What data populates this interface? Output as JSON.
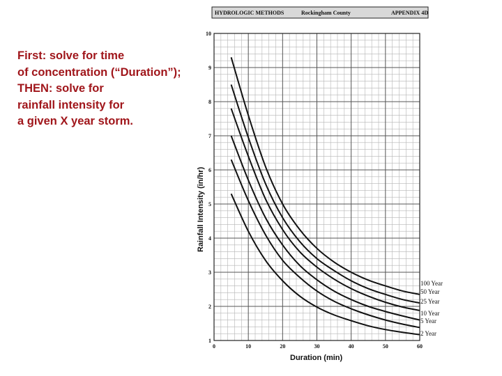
{
  "slide_note": {
    "lines": [
      "First: solve for time",
      "of concentration (“Duration”);",
      "THEN: solve for",
      "rainfall intensity for",
      "a given X year storm."
    ]
  },
  "figure_header": {
    "left": "HYDROLOGIC METHODS",
    "center": "Rockingham County",
    "right": "APPENDIX 4D"
  },
  "colors": {
    "note_text": "#a0161b",
    "curves": "#111111",
    "minor_grid": "#b5b5b5",
    "major_grid": "#555555"
  },
  "chart_data": {
    "type": "line",
    "xlabel": "Duration (min)",
    "ylabel": "Rainfall Intensity (in/hr)",
    "xlim": [
      0,
      60
    ],
    "ylim": [
      1,
      10
    ],
    "x_ticks": [
      "0",
      "10",
      "20",
      "30",
      "40",
      "50",
      "60"
    ],
    "y_ticks": [
      "1",
      "2",
      "3",
      "4",
      "5",
      "6",
      "7",
      "8",
      "9",
      "10"
    ],
    "grid": true,
    "x": [
      5,
      10,
      15,
      20,
      25,
      30,
      35,
      40,
      45,
      50,
      55,
      60
    ],
    "series": [
      {
        "name": "100 Year",
        "values": [
          9.3,
          7.6,
          6.1,
          5.0,
          4.25,
          3.7,
          3.3,
          3.0,
          2.77,
          2.6,
          2.45,
          2.35
        ]
      },
      {
        "name": "50 Year",
        "values": [
          8.5,
          6.95,
          5.6,
          4.6,
          3.9,
          3.4,
          3.05,
          2.75,
          2.52,
          2.35,
          2.2,
          2.1
        ]
      },
      {
        "name": "25 Year",
        "values": [
          7.8,
          6.4,
          5.15,
          4.25,
          3.6,
          3.15,
          2.8,
          2.52,
          2.3,
          2.12,
          1.98,
          1.88
        ]
      },
      {
        "name": "10 Year",
        "values": [
          7.0,
          5.7,
          4.6,
          3.8,
          3.2,
          2.78,
          2.45,
          2.2,
          2.0,
          1.85,
          1.72,
          1.6
        ]
      },
      {
        "name": "5 Year",
        "values": [
          6.3,
          5.1,
          4.1,
          3.35,
          2.85,
          2.45,
          2.15,
          1.93,
          1.75,
          1.6,
          1.48,
          1.38
        ]
      },
      {
        "name": "2 Year",
        "values": [
          5.3,
          4.2,
          3.35,
          2.75,
          2.3,
          1.98,
          1.75,
          1.58,
          1.43,
          1.32,
          1.24,
          1.17
        ]
      }
    ],
    "legend": "curve labels at right end of each line"
  }
}
